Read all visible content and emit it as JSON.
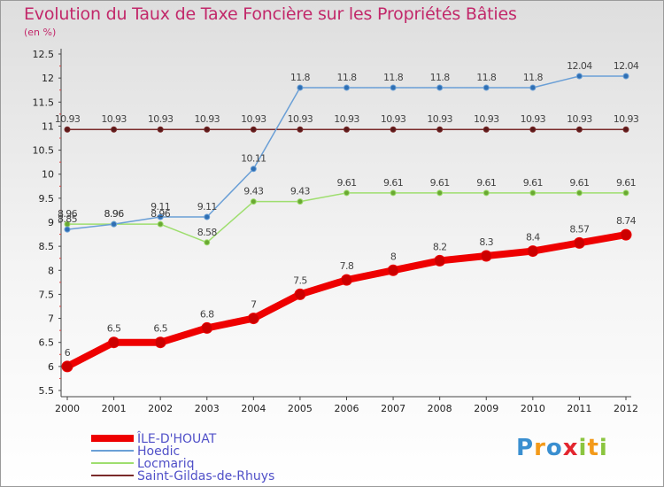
{
  "header": {
    "title": "Evolution du Taux de Taxe Foncière sur les Propriétés Bâties",
    "unit": "(en %)"
  },
  "logo": {
    "text": "Proxiti",
    "colors": [
      "#3a8fd0",
      "#f39a1a",
      "#3a8fd0",
      "#e3262f",
      "#8bc53f",
      "#f39a1a",
      "#8bc53f"
    ]
  },
  "chart_data": {
    "type": "line",
    "title": "Evolution du Taux de Taxe Foncière sur les Propriétés Bâties",
    "ylabel": "(en %)",
    "xlabel": "",
    "x": [
      "2000",
      "2001",
      "2002",
      "2003",
      "2004",
      "2005",
      "2006",
      "2007",
      "2008",
      "2009",
      "2010",
      "2011",
      "2012"
    ],
    "ylim": [
      5.5,
      12.5
    ],
    "yticks": [
      5.5,
      6,
      6.5,
      7,
      7.5,
      8,
      8.5,
      9,
      9.5,
      10,
      10.5,
      11,
      11.5,
      12,
      12.5
    ],
    "grid": false,
    "legend": "bottom-left",
    "series": [
      {
        "name": "ÎLE-D'HOUAT",
        "color": "#ee0000",
        "width": 8,
        "radius": 6,
        "values": [
          6,
          6.5,
          6.5,
          6.8,
          7,
          7.5,
          7.8,
          8,
          8.2,
          8.3,
          8.4,
          8.57,
          8.74
        ],
        "labels": [
          "6",
          "6.5",
          "6.5",
          "6.8",
          "7",
          "7.5",
          "7.8",
          "8",
          "8.2",
          "8.3",
          "8.4",
          "8.57",
          "8.74"
        ]
      },
      {
        "name": "Hoedic",
        "color": "#6a9fd6",
        "width": 1.5,
        "radius": 3,
        "values": [
          8.85,
          8.96,
          9.11,
          9.11,
          10.11,
          11.8,
          11.8,
          11.8,
          11.8,
          11.8,
          11.8,
          12.04,
          12.04
        ],
        "labels": [
          "8.85",
          "8.96",
          "9.11",
          "9.11",
          "10.11",
          "11.8",
          "11.8",
          "11.8",
          "11.8",
          "11.8",
          "11.8",
          "12.04",
          "12.04"
        ]
      },
      {
        "name": "Locmariq",
        "color": "#9ede6e",
        "width": 1.5,
        "radius": 3,
        "values": [
          8.96,
          8.96,
          8.96,
          8.58,
          9.43,
          9.43,
          9.61,
          9.61,
          9.61,
          9.61,
          9.61,
          9.61,
          9.61
        ],
        "labels": [
          "8.96",
          "8.96",
          "8.96",
          "8.58",
          "9.43",
          "9.43",
          "9.61",
          "9.61",
          "9.61",
          "9.61",
          "9.61",
          "9.61",
          "9.61"
        ]
      },
      {
        "name": "Saint-Gildas-de-Rhuys",
        "color": "#7a2a2a",
        "width": 1.5,
        "radius": 3,
        "values": [
          10.93,
          10.93,
          10.93,
          10.93,
          10.93,
          10.93,
          10.93,
          10.93,
          10.93,
          10.93,
          10.93,
          10.93,
          10.93
        ],
        "labels": [
          "10.93",
          "10.93",
          "10.93",
          "10.93",
          "10.93",
          "10.93",
          "10.93",
          "10.93",
          "10.93",
          "10.93",
          "10.93",
          "10.93",
          "10.93"
        ]
      }
    ]
  }
}
